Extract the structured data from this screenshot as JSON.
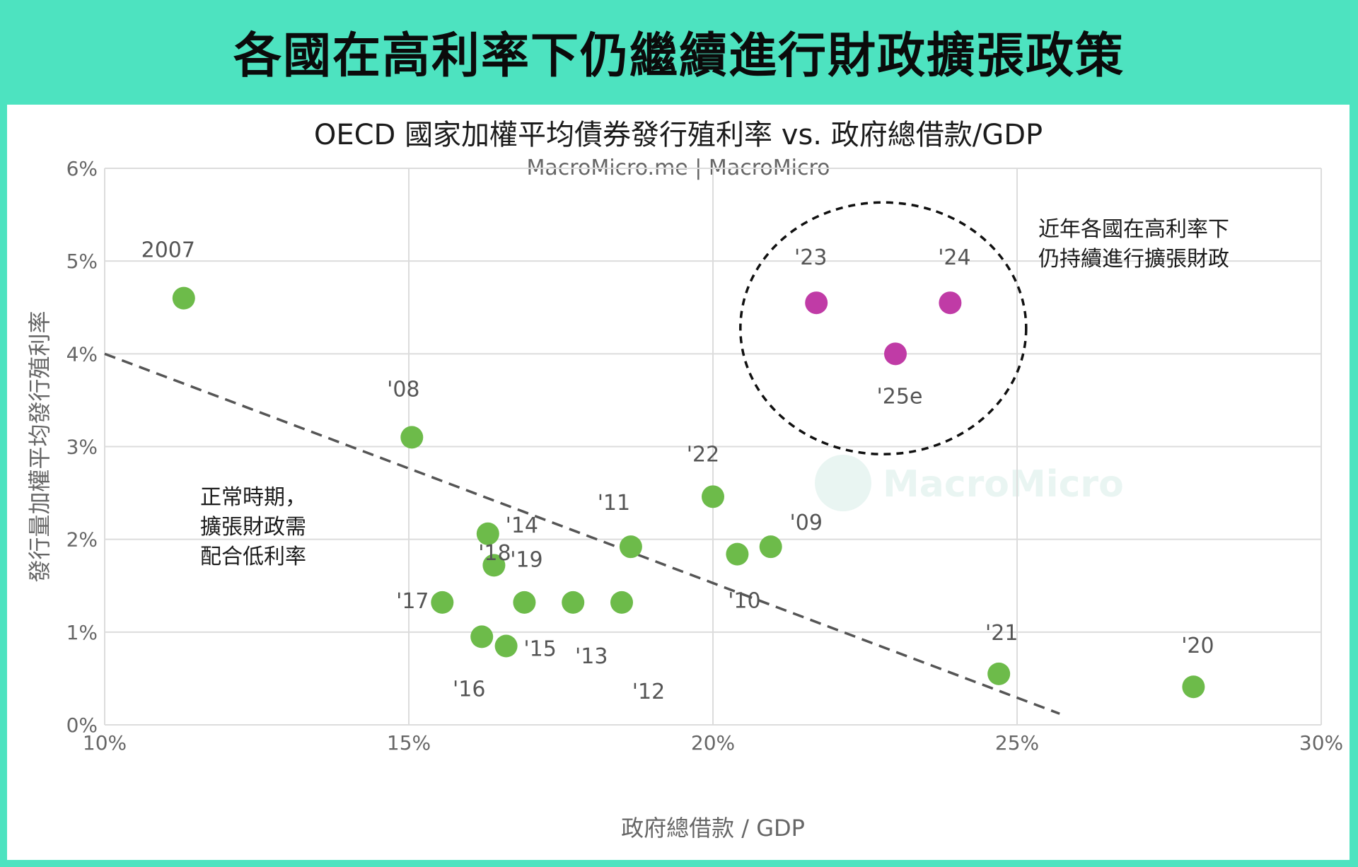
{
  "banner": {
    "title": "各國在高利率下仍繼續進行財政擴張政策"
  },
  "chart_data": {
    "type": "scatter",
    "title": "OECD 國家加權平均債券發行殖利率 vs. 政府總借款/GDP",
    "source": "MacroMicro.me | MacroMicro",
    "xlabel": "政府總借款 / GDP",
    "ylabel": "發行量加權平均發行殖利率",
    "xlim": [
      10,
      30
    ],
    "ylim": [
      0,
      6
    ],
    "x_ticks": [
      10,
      15,
      20,
      25,
      30
    ],
    "x_tick_labels": [
      "10%",
      "15%",
      "20%",
      "25%",
      "30%"
    ],
    "y_ticks": [
      0,
      1,
      2,
      3,
      4,
      5,
      6
    ],
    "y_tick_labels": [
      "0%",
      "1%",
      "2%",
      "3%",
      "4%",
      "5%",
      "6%"
    ],
    "grid": true,
    "series": [
      {
        "color": "#6dbb4a",
        "points": [
          {
            "label": "2007",
            "x": 11.3,
            "y": 4.6
          },
          {
            "label": "'08",
            "x": 15.05,
            "y": 3.1
          },
          {
            "label": "'09",
            "x": 20.95,
            "y": 1.92
          },
          {
            "label": "'10",
            "x": 20.4,
            "y": 1.84
          },
          {
            "label": "'11",
            "x": 18.65,
            "y": 1.92
          },
          {
            "label": "'12",
            "x": 18.5,
            "y": 1.32
          },
          {
            "label": "'13",
            "x": 17.7,
            "y": 1.32
          },
          {
            "label": "'14",
            "x": 16.3,
            "y": 2.06
          },
          {
            "label": "'15",
            "x": 16.6,
            "y": 0.85
          },
          {
            "label": "'16",
            "x": 16.2,
            "y": 0.95
          },
          {
            "label": "'17",
            "x": 15.55,
            "y": 1.32
          },
          {
            "label": "'18",
            "x": 16.9,
            "y": 1.32
          },
          {
            "label": "'19",
            "x": 16.4,
            "y": 1.72
          },
          {
            "label": "'20",
            "x": 27.9,
            "y": 0.41
          },
          {
            "label": "'21",
            "x": 24.7,
            "y": 0.55
          },
          {
            "label": "'22",
            "x": 20.0,
            "y": 2.46
          }
        ]
      },
      {
        "color": "#c03ba6",
        "points": [
          {
            "label": "'23",
            "x": 21.7,
            "y": 4.55
          },
          {
            "label": "'24",
            "x": 23.9,
            "y": 4.55
          },
          {
            "label": "'25e",
            "x": 23.0,
            "y": 4.0
          }
        ]
      }
    ],
    "trendline": {
      "x": [
        10,
        25.7
      ],
      "y": [
        4.0,
        0.12
      ],
      "style": "dashed"
    },
    "annotations": [
      {
        "lines": [
          "近年各國在高利率下",
          "仍持續進行擴張財政"
        ]
      },
      {
        "lines": [
          "正常時期，",
          "擴張財政需",
          "配合低利率"
        ]
      }
    ],
    "watermark": "MacroMicro"
  }
}
